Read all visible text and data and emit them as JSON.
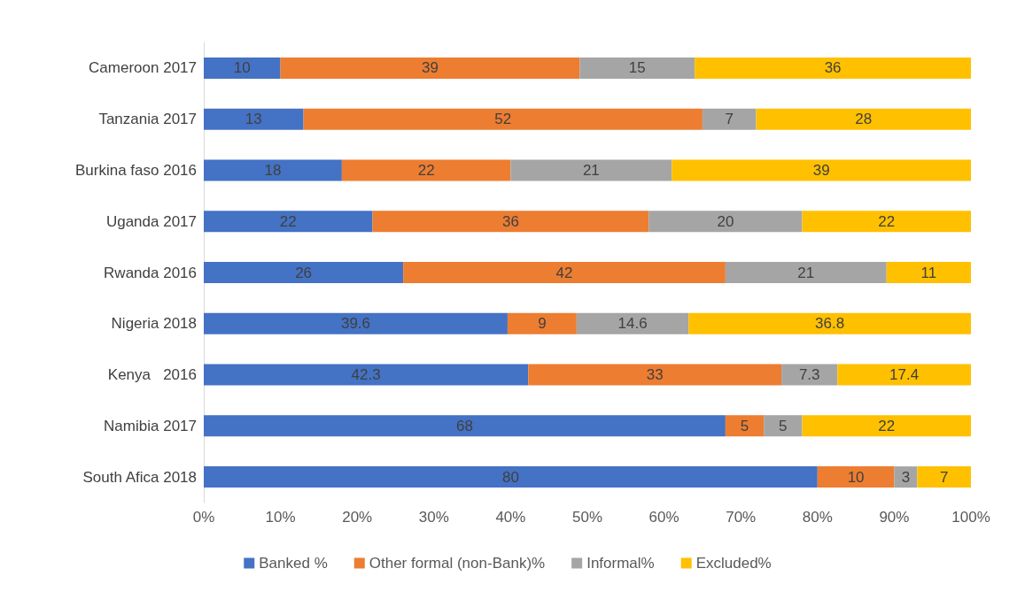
{
  "chart_data": {
    "type": "bar",
    "orientation": "horizontal",
    "stacked": true,
    "data_labels": true,
    "legend": "bottom",
    "grid": false,
    "categories": [
      "Cameroon 2017",
      "Tanzania 2017",
      "Burkina faso 2016",
      "Uganda 2017",
      "Rwanda 2016",
      "Nigeria 2018",
      "Kenya   2016",
      "Namibia 2017",
      "South Afica 2018"
    ],
    "xlim": [
      0,
      100
    ],
    "xticks": [
      {
        "value": 0,
        "label": "0%"
      },
      {
        "value": 10,
        "label": "10%"
      },
      {
        "value": 20,
        "label": "20%"
      },
      {
        "value": 30,
        "label": "30%"
      },
      {
        "value": 40,
        "label": "40%"
      },
      {
        "value": 50,
        "label": "50%"
      },
      {
        "value": 60,
        "label": "60%"
      },
      {
        "value": 70,
        "label": "70%"
      },
      {
        "value": 80,
        "label": "80%"
      },
      {
        "value": 90,
        "label": "90%"
      },
      {
        "value": 100,
        "label": "100%"
      }
    ],
    "series": [
      {
        "name": "Banked %",
        "color": "#4472c4",
        "values": [
          10,
          13,
          18,
          22,
          26,
          39.6,
          42.3,
          68,
          80
        ]
      },
      {
        "name": "Other formal (non-Bank)%",
        "color": "#ed7d31",
        "values": [
          39,
          52,
          22,
          36,
          42,
          9,
          33,
          5,
          10
        ]
      },
      {
        "name": "Informal%",
        "color": "#a5a5a5",
        "values": [
          15,
          7,
          21,
          20,
          21,
          14.6,
          7.3,
          5,
          3
        ]
      },
      {
        "name": "Excluded%",
        "color": "#ffc000",
        "values": [
          36,
          28,
          39,
          22,
          11,
          36.8,
          17.4,
          22,
          7
        ]
      }
    ]
  }
}
